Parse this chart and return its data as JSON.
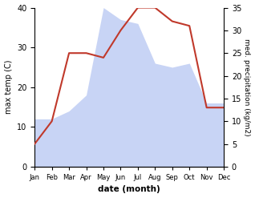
{
  "months": [
    "Jan",
    "Feb",
    "Mar",
    "Apr",
    "May",
    "Jun",
    "Jul",
    "Aug",
    "Sep",
    "Oct",
    "Nov",
    "Dec"
  ],
  "temperature": [
    12,
    12,
    14,
    18,
    40,
    37,
    36,
    26,
    25,
    26,
    16,
    16
  ],
  "precipitation": [
    5,
    10,
    25,
    25,
    24,
    30,
    35,
    35,
    32,
    31,
    13,
    13
  ],
  "temp_fill_color": "#c8d4f5",
  "precip_color": "#c0392b",
  "ylabel_left": "max temp (C)",
  "ylabel_right": "med. precipitation (kg/m2)",
  "xlabel": "date (month)",
  "ylim_left": [
    0,
    40
  ],
  "ylim_right": [
    0,
    35
  ],
  "yticks_left": [
    0,
    10,
    20,
    30,
    40
  ],
  "yticks_right": [
    0,
    5,
    10,
    15,
    20,
    25,
    30,
    35
  ],
  "bg_color": "#ffffff"
}
